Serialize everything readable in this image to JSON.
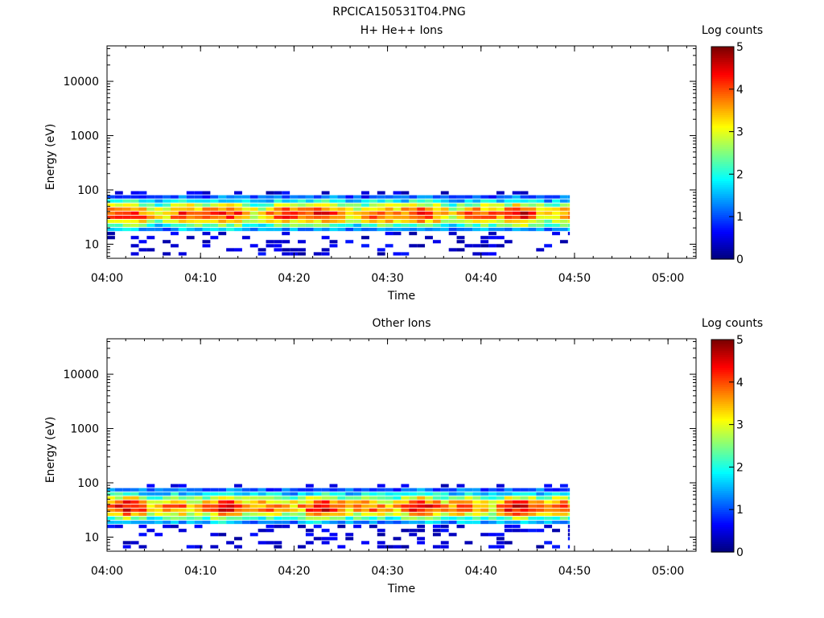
{
  "figure_title": "RPCICA150531T04.PNG",
  "colors": {
    "colormap": [
      "#00007f",
      "#0000ff",
      "#0080ff",
      "#00ffff",
      "#80ff80",
      "#ffff00",
      "#ff8000",
      "#ff0000",
      "#7f0000"
    ]
  },
  "chart_data": [
    {
      "type": "heatmap",
      "title": "H+ He++ Ions",
      "xlabel": "Time",
      "ylabel": "Energy (eV)",
      "x_range": [
        "04:00",
        "05:03"
      ],
      "x_ticks": [
        "04:00",
        "04:10",
        "04:20",
        "04:30",
        "04:40",
        "04:50",
        "05:00"
      ],
      "y_scale": "log",
      "y_range": [
        5.5,
        45000
      ],
      "y_ticks": [
        10,
        100,
        1000,
        10000
      ],
      "y_tick_labels": [
        "10",
        "100",
        "1000",
        "10000"
      ],
      "colorbar_label": "Log counts",
      "colorbar_range": [
        0,
        5
      ],
      "colorbar_ticks": [
        "0",
        "1",
        "2",
        "3",
        "4",
        "5"
      ],
      "data_time_span": [
        "04:00",
        "04:49.5"
      ],
      "data_energy_span_eV": [
        6,
        95
      ],
      "peak_log_counts": 4.6,
      "peak_energy_eV": 35
    },
    {
      "type": "heatmap",
      "title": "Other Ions",
      "xlabel": "Time",
      "ylabel": "Energy (eV)",
      "x_range": [
        "04:00",
        "05:03"
      ],
      "x_ticks": [
        "04:00",
        "04:10",
        "04:20",
        "04:30",
        "04:40",
        "04:50",
        "05:00"
      ],
      "y_scale": "log",
      "y_range": [
        5.5,
        45000
      ],
      "y_ticks": [
        10,
        100,
        1000,
        10000
      ],
      "y_tick_labels": [
        "10",
        "100",
        "1000",
        "10000"
      ],
      "colorbar_label": "Log counts",
      "colorbar_range": [
        0,
        5
      ],
      "colorbar_ticks": [
        "0",
        "1",
        "2",
        "3",
        "4",
        "5"
      ],
      "data_time_span": [
        "04:00",
        "04:49.5"
      ],
      "data_energy_span_eV": [
        6,
        95
      ],
      "peak_log_counts": 4.6,
      "peak_energy_eV": 35
    }
  ]
}
